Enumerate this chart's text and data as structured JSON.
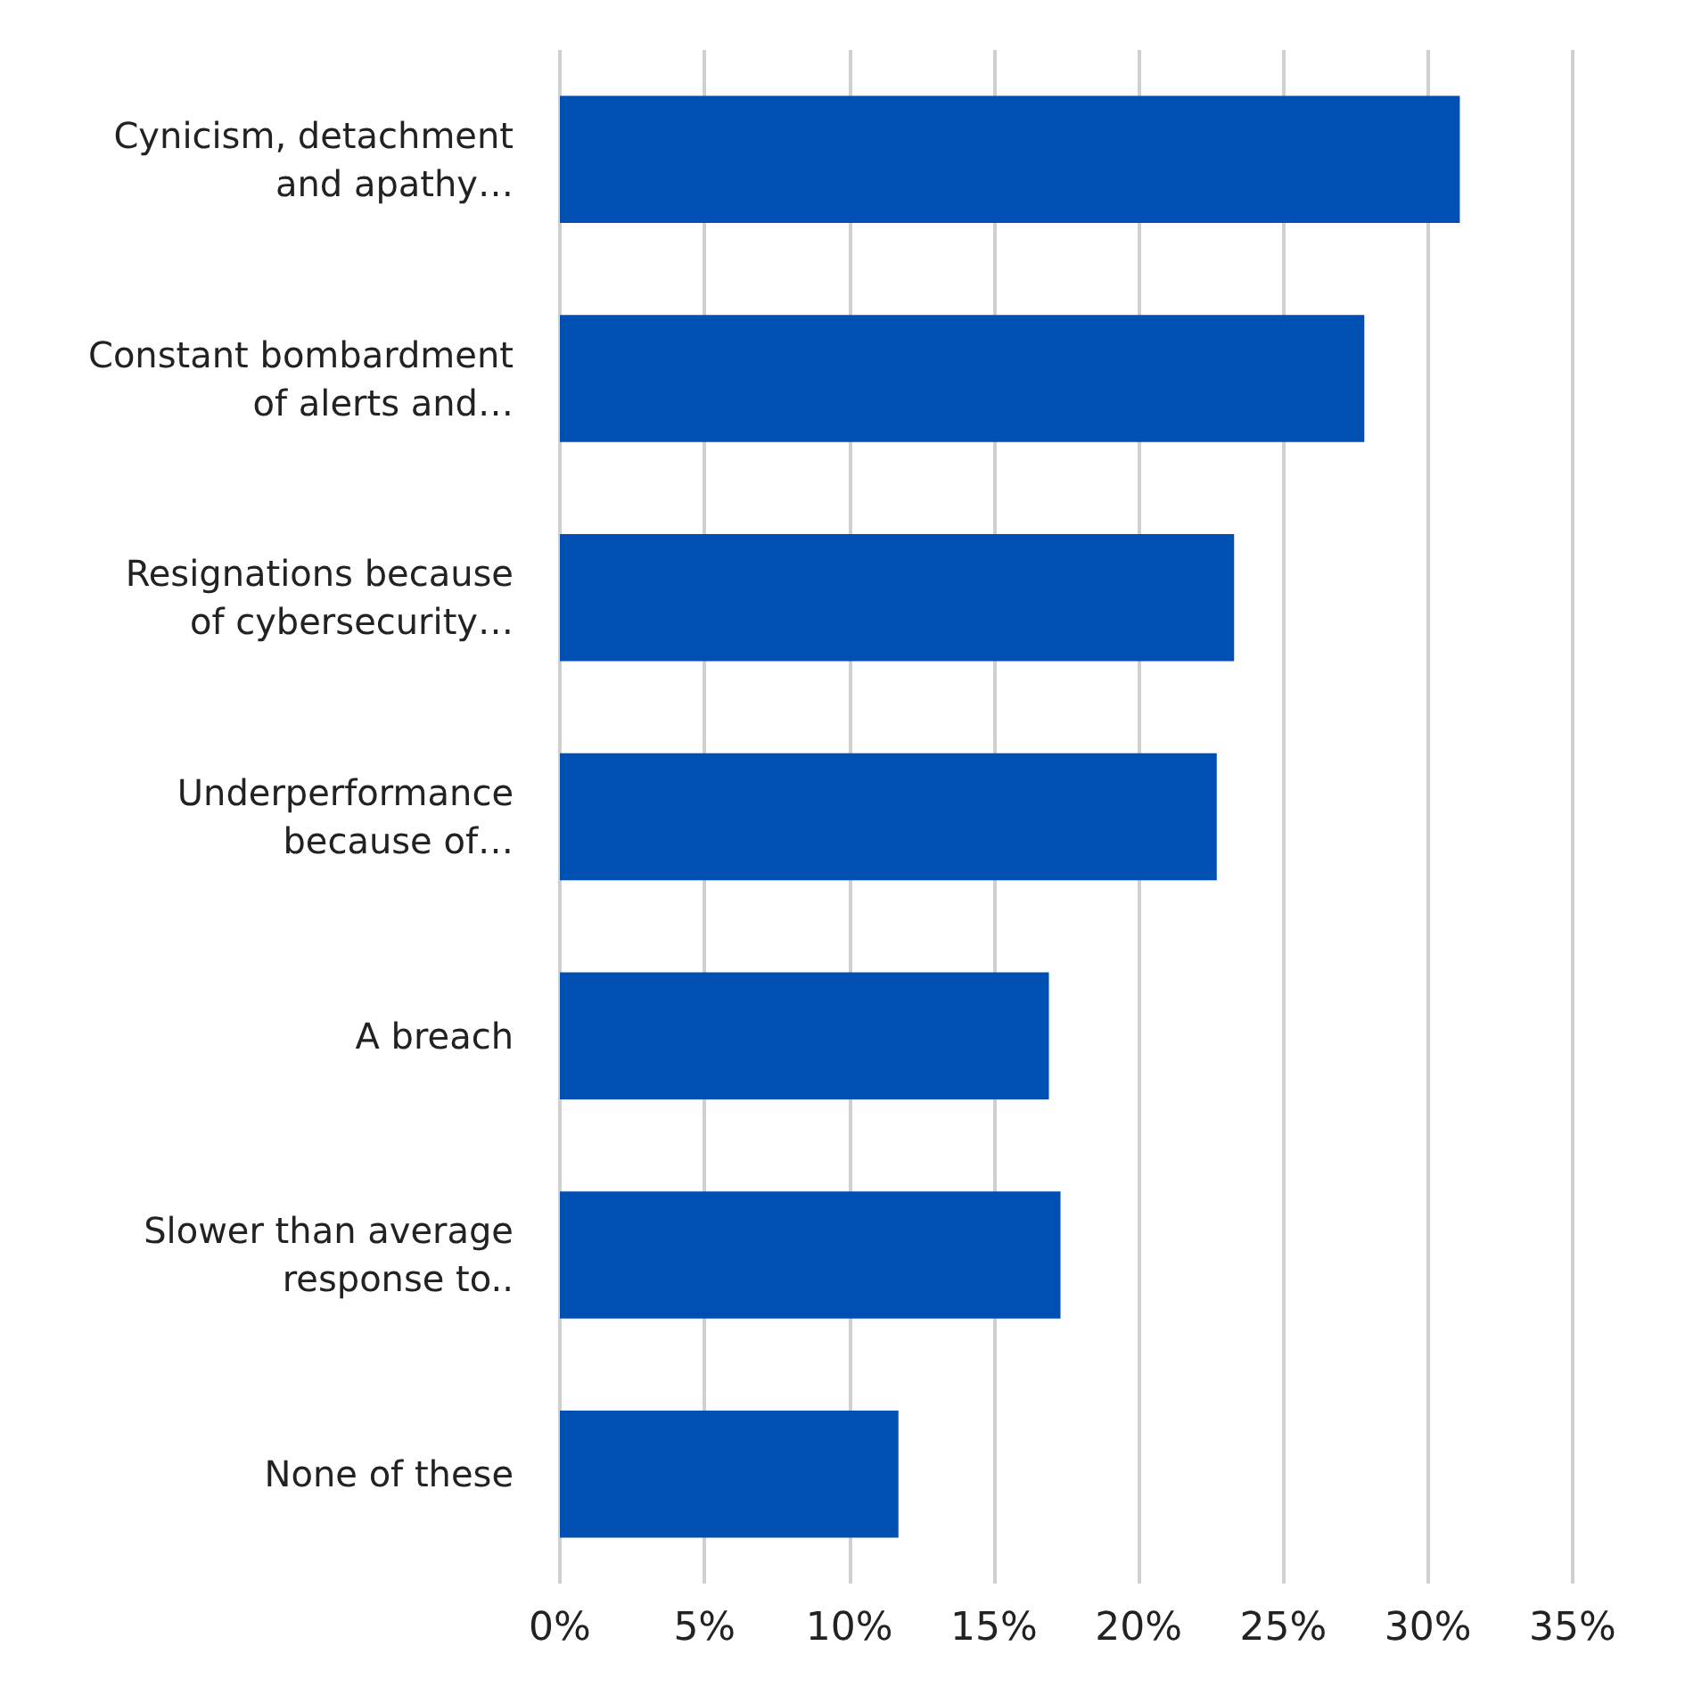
{
  "chart_data": {
    "type": "bar",
    "orientation": "horizontal",
    "categories": [
      "Cynicism, detachment\nand apathy…",
      "Constant bombardment\nof alerts and…",
      "Resignations because\nof cybersecurity…",
      "Underperformance\nbecause of…",
      "A breach",
      "Slower than average\nresponse to..",
      "None of these"
    ],
    "values": [
      31.1,
      27.8,
      23.3,
      22.7,
      16.9,
      17.3,
      11.7
    ],
    "color": "#0050b4",
    "xlim": [
      0,
      35
    ],
    "xticks": [
      {
        "value": 0,
        "label": "0%"
      },
      {
        "value": 5,
        "label": "5%"
      },
      {
        "value": 10,
        "label": "10%"
      },
      {
        "value": 15,
        "label": "15%"
      },
      {
        "value": 20,
        "label": "20%"
      },
      {
        "value": 25,
        "label": "25%"
      },
      {
        "value": 30,
        "label": "30%"
      },
      {
        "value": 35,
        "label": "35%"
      }
    ],
    "grid": "x"
  }
}
